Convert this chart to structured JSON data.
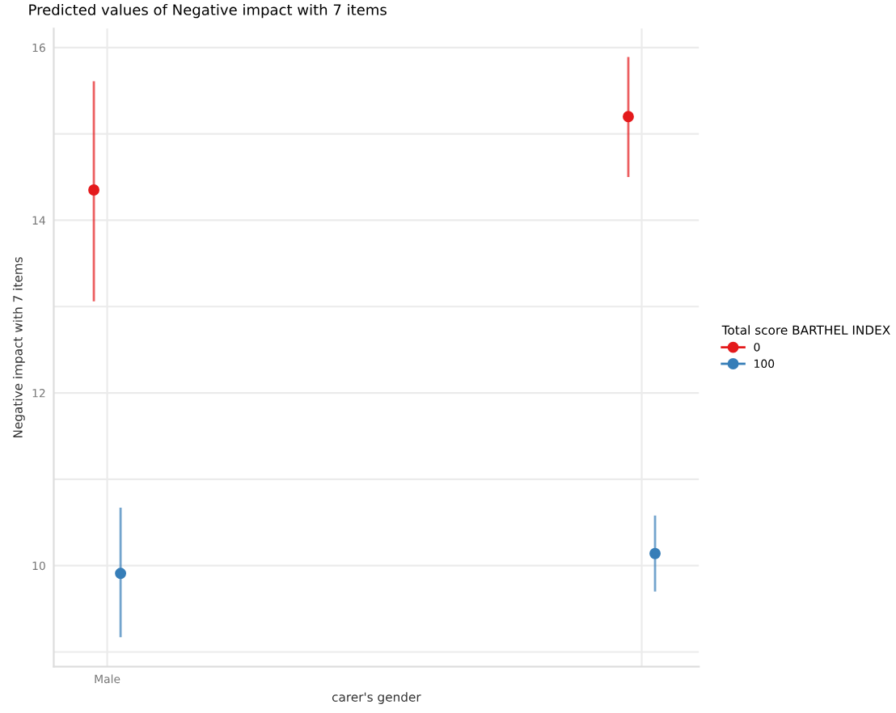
{
  "chart_data": {
    "type": "scatter",
    "title": "Predicted values of Negative impact with 7 items",
    "xlabel": "carer's gender",
    "ylabel": "Negative impact with 7 items",
    "legend_title": "Total score BARTHEL INDEX",
    "categories": [
      "Male",
      null
    ],
    "series": [
      {
        "name": "0",
        "color": "#e41a1c",
        "values": [
          14.35,
          15.2
        ],
        "errors": [
          [
            13.06,
            15.61
          ],
          [
            14.5,
            15.89
          ]
        ]
      },
      {
        "name": "100",
        "color": "#377eb8",
        "values": [
          9.91,
          10.14
        ],
        "errors": [
          [
            9.17,
            10.67
          ],
          [
            9.7,
            10.58
          ]
        ]
      }
    ],
    "ylim": [
      8.83,
      16.22
    ],
    "yticks": [
      {
        "value": 9,
        "label": null
      },
      10,
      {
        "value": 11,
        "label": null
      },
      12,
      {
        "value": 13,
        "label": null
      },
      14,
      {
        "value": 15,
        "label": null
      },
      16
    ],
    "grid": true,
    "legend": "right",
    "marker": "circle"
  }
}
